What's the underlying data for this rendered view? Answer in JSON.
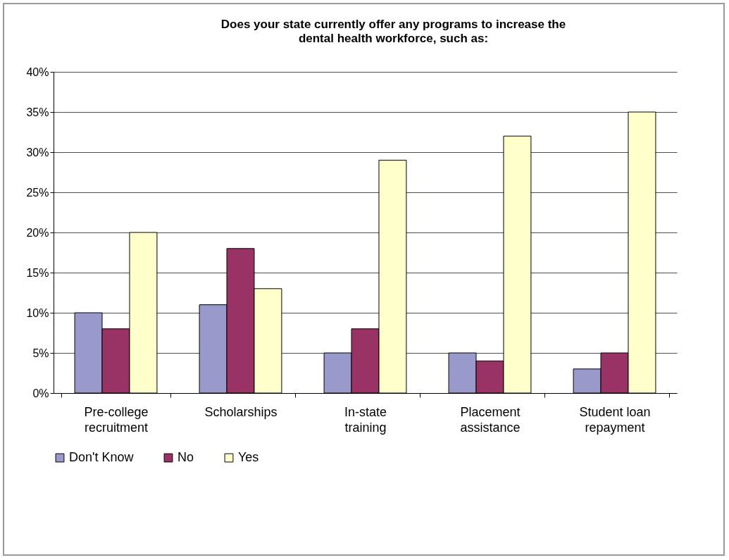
{
  "chart_data": {
    "type": "bar",
    "title": "Does your state currently offer any programs to increase the dental health workforce, such as:",
    "categories": [
      "Pre-college recruitment",
      "Scholarships",
      "In-state training",
      "Placement assistance",
      "Student loan repayment"
    ],
    "series": [
      {
        "name": "Don't Know",
        "color": "#9999cc",
        "values": [
          10,
          11,
          5,
          5,
          3
        ]
      },
      {
        "name": "No",
        "color": "#993366",
        "values": [
          8,
          18,
          8,
          4,
          5
        ]
      },
      {
        "name": "Yes",
        "color": "#ffffcc",
        "values": [
          20,
          13,
          29,
          32,
          35
        ]
      }
    ],
    "ylim": [
      0,
      40
    ],
    "yticks": [
      {
        "value": 0,
        "label": "0%"
      },
      {
        "value": 5,
        "label": "5%"
      },
      {
        "value": 10,
        "label": "10%"
      },
      {
        "value": 15,
        "label": "15%"
      },
      {
        "value": 20,
        "label": "20%"
      },
      {
        "value": 25,
        "label": "25%"
      },
      {
        "value": 30,
        "label": "30%"
      },
      {
        "value": 35,
        "label": "35%"
      },
      {
        "value": 40,
        "label": "40%"
      }
    ],
    "grid": "y",
    "legend": "bottom"
  }
}
